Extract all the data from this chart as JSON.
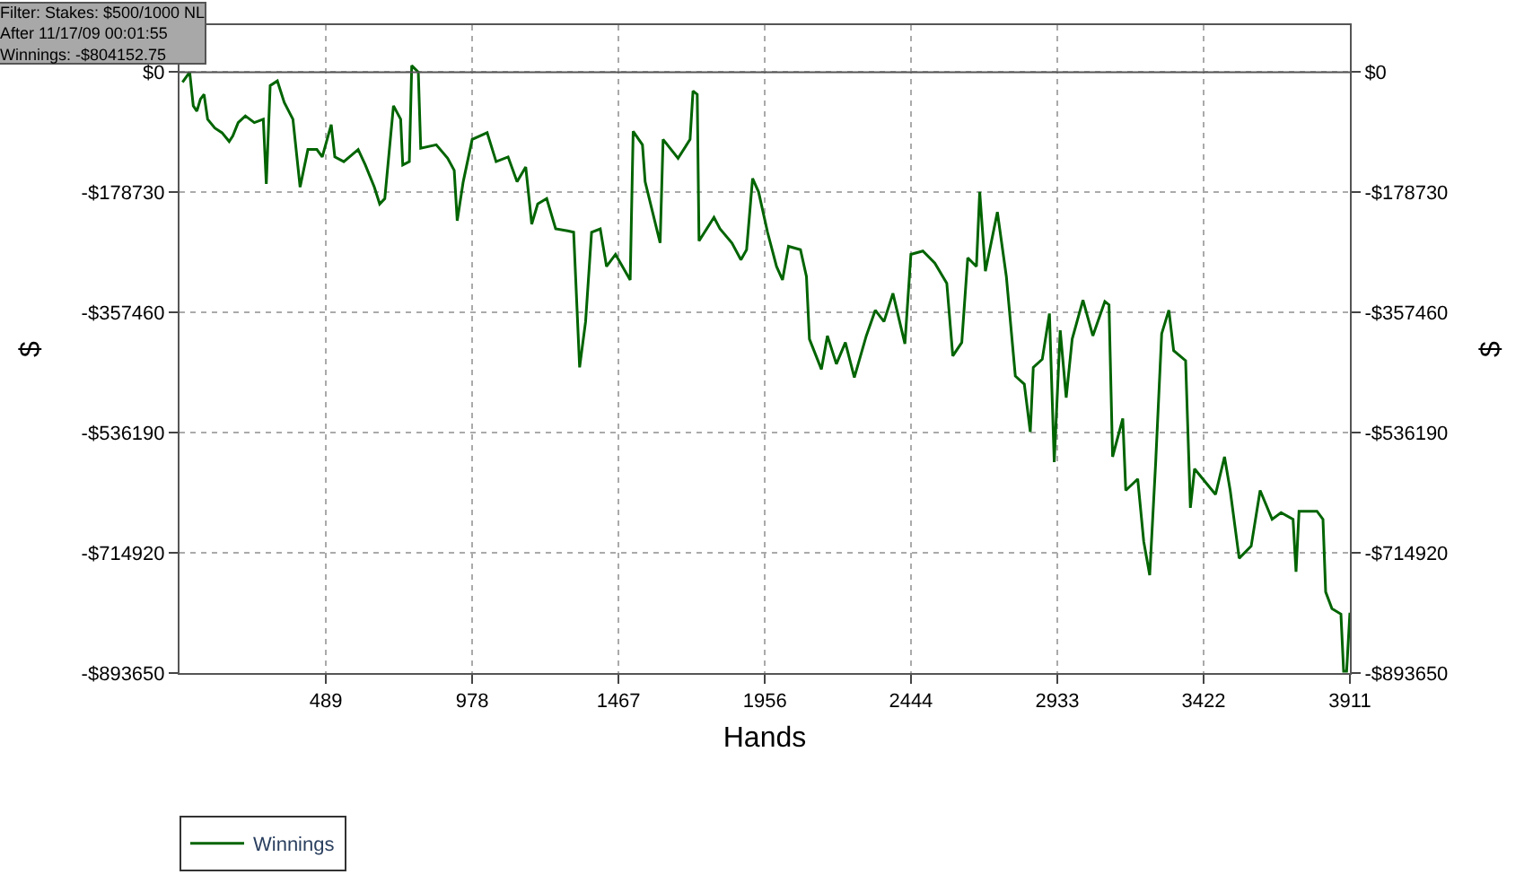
{
  "chart_data": {
    "type": "line",
    "xlabel": "Hands",
    "ylabel": "$",
    "y2label": "$",
    "annotations": [
      "Filter: Stakes: $500/1000 NL\nAfter 11/17/09 00:01:55\nWinnings: -$804152.75"
    ],
    "x": [
      10,
      34,
      46,
      58,
      70,
      82,
      94,
      118,
      142,
      166,
      178,
      196,
      220,
      250,
      280,
      290,
      303,
      327,
      350,
      379,
      403,
      429,
      459,
      477,
      507,
      519,
      549,
      597,
      621,
      651,
      669,
      686,
      715,
      739,
      746,
      768,
      776,
      798,
      806,
      858,
      896,
      918,
      928,
      948,
      978,
      1028,
      1058,
      1098,
      1128,
      1157,
      1177,
      1197,
      1227,
      1257,
      1297,
      1317,
      1337,
      1357,
      1377,
      1406,
      1427,
      1457,
      1506,
      1516,
      1547,
      1556,
      1606,
      1616,
      1666,
      1706,
      1716,
      1730,
      1736,
      1786,
      1806,
      1846,
      1876,
      1895,
      1915,
      1935,
      1965,
      1995,
      2015,
      2035,
      2075,
      2095,
      2105,
      2145,
      2165,
      2195,
      2225,
      2255,
      2295,
      2325,
      2354,
      2384,
      2424,
      2444,
      2484,
      2524,
      2564,
      2584,
      2614,
      2634,
      2663,
      2674,
      2693,
      2733,
      2763,
      2793,
      2823,
      2843,
      2853,
      2883,
      2907,
      2923,
      2943,
      2963,
      2983,
      3019,
      3052,
      3092,
      3106,
      3118,
      3152,
      3162,
      3202,
      3222,
      3242,
      3262,
      3282,
      3306,
      3322,
      3362,
      3378,
      3392,
      3462,
      3492,
      3511,
      3541,
      3581,
      3611,
      3651,
      3681,
      3721,
      3731,
      3741,
      3801,
      3821,
      3830,
      3851,
      3881,
      3890,
      3900,
      3911
    ],
    "series": [
      {
        "name": "Winnings",
        "color": "#006400",
        "values": [
          -15000,
          0,
          -50000,
          -58000,
          -40000,
          -33000,
          -70000,
          -83000,
          -90000,
          -103000,
          -95000,
          -75000,
          -65000,
          -75000,
          -70000,
          -166000,
          -20000,
          -13000,
          -45000,
          -70000,
          -171000,
          -115000,
          -115000,
          -126000,
          -78000,
          -126000,
          -133000,
          -115000,
          -138000,
          -171000,
          -196000,
          -188000,
          -50000,
          -70000,
          -138000,
          -133000,
          10000,
          0,
          -113000,
          -108000,
          -128000,
          -146000,
          -221000,
          -163000,
          -100000,
          -90000,
          -133000,
          -126000,
          -163000,
          -141000,
          -226000,
          -196000,
          -188000,
          -233000,
          -236000,
          -238000,
          -439000,
          -371000,
          -238000,
          -233000,
          -289000,
          -271000,
          -309000,
          -88000,
          -108000,
          -163000,
          -254000,
          -100000,
          -128000,
          -100000,
          -28000,
          -33000,
          -251000,
          -216000,
          -233000,
          -254000,
          -279000,
          -264000,
          -158000,
          -178000,
          -238000,
          -289000,
          -309000,
          -259000,
          -264000,
          -304000,
          -397000,
          -442000,
          -392000,
          -434000,
          -402000,
          -454000,
          -392000,
          -354000,
          -371000,
          -329000,
          -404000,
          -271000,
          -266000,
          -284000,
          -314000,
          -422000,
          -402000,
          -276000,
          -289000,
          -178000,
          -296000,
          -208000,
          -304000,
          -452000,
          -464000,
          -535000,
          -439000,
          -427000,
          -359000,
          -580000,
          -384000,
          -484000,
          -397000,
          -339000,
          -392000,
          -341000,
          -346000,
          -572000,
          -515000,
          -622000,
          -605000,
          -698000,
          -748000,
          -580000,
          -389000,
          -354000,
          -414000,
          -429000,
          -648000,
          -590000,
          -628000,
          -572000,
          -622000,
          -723000,
          -705000,
          -622000,
          -665000,
          -655000,
          -665000,
          -743000,
          -653000,
          -653000,
          -665000,
          -773000,
          -798000,
          -806000,
          -891000,
          -891000,
          -804000
        ]
      }
    ],
    "xlim": [
      0,
      3911
    ],
    "xticks": [
      489,
      978,
      1467,
      1956,
      2444,
      2933,
      3422,
      3911
    ],
    "ylim": [
      -893650,
      70000
    ],
    "yticks": [
      {
        "value": 0,
        "label": "$0"
      },
      {
        "value": -178730,
        "label": "-$178730"
      },
      {
        "value": -357460,
        "label": "-$357460"
      },
      {
        "value": -536190,
        "label": "-$536190"
      },
      {
        "value": -714920,
        "label": "-$714920"
      },
      {
        "value": -893650,
        "label": "-$893650"
      }
    ],
    "y2lim": [
      -893650,
      70000
    ],
    "y2ticks": [
      {
        "value": 0,
        "label": "$0"
      },
      {
        "value": -178730,
        "label": "-$178730"
      },
      {
        "value": -357460,
        "label": "-$357460"
      },
      {
        "value": -536190,
        "label": "-$536190"
      },
      {
        "value": -714920,
        "label": "-$714920"
      },
      {
        "value": -893650,
        "label": "-$893650"
      }
    ],
    "ref_lines": [
      {
        "axis": "y",
        "value": 0,
        "color": "#555555",
        "line_style": "solid"
      }
    ],
    "grid": true,
    "legend": "bottom left",
    "marker": "none",
    "line_style": "solid"
  }
}
